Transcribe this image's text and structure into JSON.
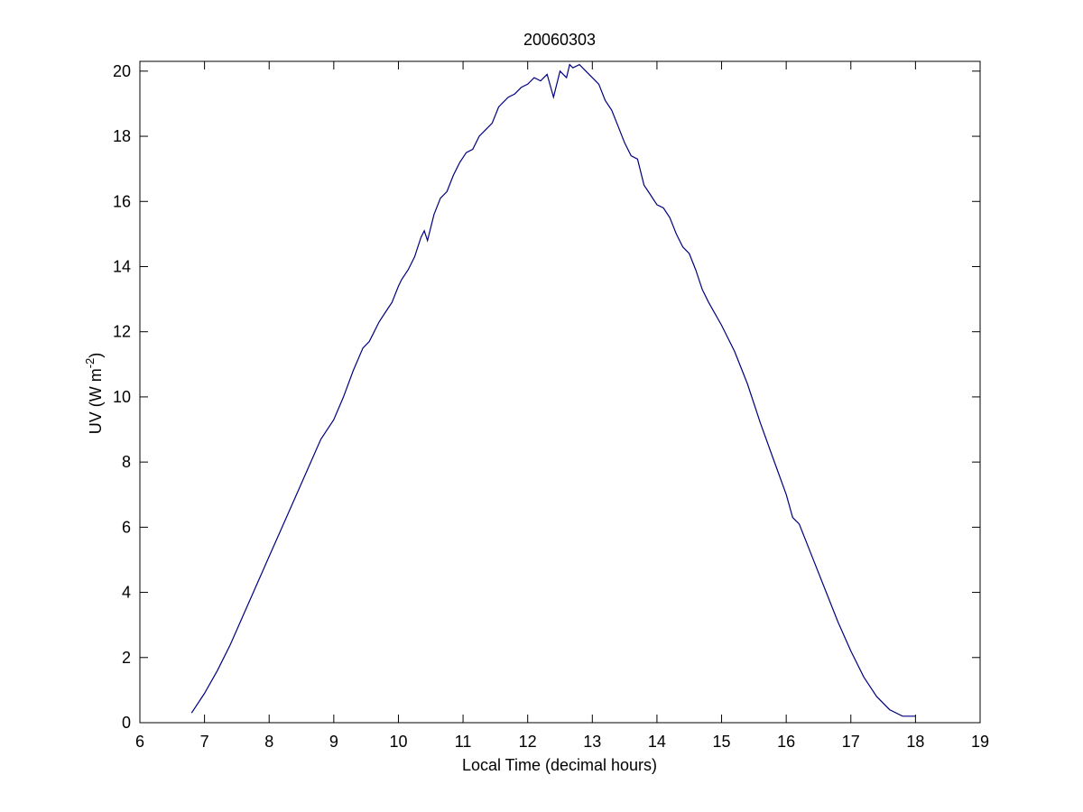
{
  "chart_data": {
    "type": "line",
    "title": "20060303",
    "xlabel": "Local Time (decimal hours)",
    "ylabel": "UV (W m",
    "ylabel_exponent": "-2",
    "ylabel_close": ")",
    "xlim": [
      6,
      19
    ],
    "ylim": [
      0,
      20.3
    ],
    "xticks": [
      6,
      7,
      8,
      9,
      10,
      11,
      12,
      13,
      14,
      15,
      16,
      17,
      18,
      19
    ],
    "yticks": [
      0,
      2,
      4,
      6,
      8,
      10,
      12,
      14,
      16,
      18,
      20
    ],
    "grid": false,
    "legend": "none",
    "line_color": "#00007f",
    "series": [
      {
        "x": [
          6.8,
          7.0,
          7.2,
          7.4,
          7.6,
          7.8,
          8.0,
          8.2,
          8.4,
          8.6,
          8.8,
          9.0,
          9.15,
          9.3,
          9.45,
          9.55,
          9.6,
          9.7,
          9.8,
          9.9,
          10.0,
          10.05,
          10.15,
          10.25,
          10.35,
          10.4,
          10.45,
          10.55,
          10.65,
          10.75,
          10.85,
          10.95,
          11.05,
          11.15,
          11.25,
          11.35,
          11.45,
          11.55,
          11.6,
          11.7,
          11.8,
          11.9,
          12.0,
          12.1,
          12.2,
          12.3,
          12.4,
          12.5,
          12.6,
          12.65,
          12.7,
          12.8,
          12.9,
          13.0,
          13.1,
          13.2,
          13.3,
          13.4,
          13.5,
          13.6,
          13.7,
          13.8,
          13.9,
          14.0,
          14.1,
          14.2,
          14.3,
          14.4,
          14.5,
          14.6,
          14.7,
          14.8,
          15.0,
          15.2,
          15.4,
          15.6,
          15.8,
          16.0,
          16.1,
          16.2,
          16.4,
          16.6,
          16.8,
          17.0,
          17.2,
          17.4,
          17.6,
          17.8,
          18.0
        ],
        "y": [
          0.3,
          0.9,
          1.6,
          2.4,
          3.3,
          4.2,
          5.1,
          6.0,
          6.9,
          7.8,
          8.7,
          9.3,
          10.0,
          10.8,
          11.5,
          11.7,
          11.9,
          12.3,
          12.6,
          12.9,
          13.4,
          13.6,
          13.9,
          14.3,
          14.9,
          15.1,
          14.8,
          15.6,
          16.1,
          16.3,
          16.8,
          17.2,
          17.5,
          17.6,
          18.0,
          18.2,
          18.4,
          18.9,
          19.0,
          19.2,
          19.3,
          19.5,
          19.6,
          19.8,
          19.7,
          19.9,
          19.2,
          20.0,
          19.8,
          20.2,
          20.1,
          20.2,
          20.0,
          19.8,
          19.6,
          19.1,
          18.8,
          18.3,
          17.8,
          17.4,
          17.3,
          16.5,
          16.2,
          15.9,
          15.8,
          15.5,
          15.0,
          14.6,
          14.4,
          13.9,
          13.3,
          12.9,
          12.2,
          11.4,
          10.4,
          9.2,
          8.1,
          7.0,
          6.3,
          6.1,
          5.1,
          4.1,
          3.1,
          2.2,
          1.4,
          0.8,
          0.4,
          0.2,
          0.2
        ]
      }
    ]
  }
}
